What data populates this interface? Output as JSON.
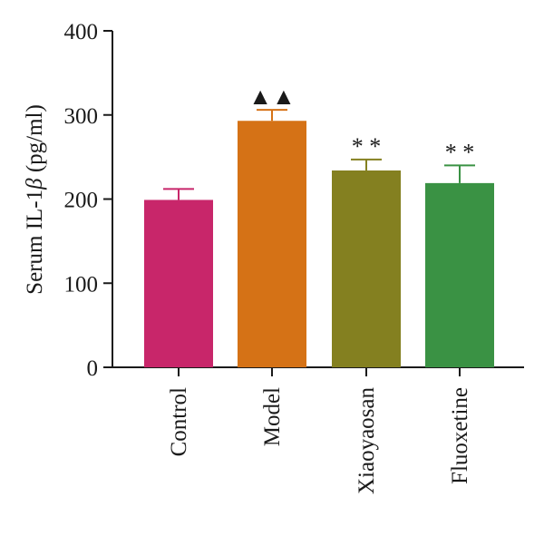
{
  "chart_data": {
    "type": "bar",
    "ylabel_prefix": "Serum IL-1",
    "ylabel_beta": "β",
    "ylabel_suffix": " (pg/ml)",
    "ylim": [
      0,
      400
    ],
    "yticks": [
      0,
      100,
      200,
      300,
      400
    ],
    "categories": [
      "Control",
      "Model",
      "Xiaoyaosan",
      "Fluoxetine"
    ],
    "values": [
      199,
      293,
      234,
      219
    ],
    "errors": [
      13,
      13,
      13,
      21
    ],
    "colors": [
      "#c8266a",
      "#d57216",
      "#848020",
      "#3a9244"
    ],
    "annotations": [
      "",
      "▲▲",
      "* *",
      "* *"
    ],
    "grid": false,
    "legend": "none"
  }
}
